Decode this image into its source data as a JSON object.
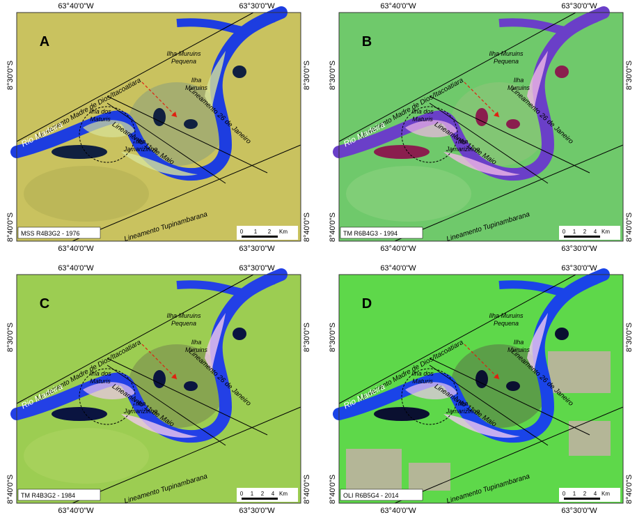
{
  "panels": [
    {
      "letter": "A",
      "caption": "MSS R4B3G2 - 1976",
      "lon_top": [
        "63°40'0\"W",
        "63°30'0\"W"
      ],
      "lon_bottom": [
        "63°40'0\"W",
        "63°30'0\"W"
      ],
      "lat_left": [
        "8°30'0\"S",
        "8°40'0\"S"
      ],
      "lat_right": [
        "8°30'0\"S",
        "8°40'0\"S"
      ],
      "labels": [
        "Lineamento Madre de Dios/Itacoatiara",
        "Lineamento 26 de Janeiro",
        "Lineamento 11 de Maio",
        "Lineamento Tupinambarana",
        "Rio Madeira",
        [
          "Ilha dos",
          "Maturis"
        ],
        [
          "Ilha",
          "Jamarizinho"
        ],
        [
          "Ilha Muruins",
          "Pequena"
        ],
        [
          "Ilha",
          "Muruins"
        ]
      ],
      "scale": [
        "0",
        "1",
        "2",
        "Km"
      ]
    },
    {
      "letter": "B",
      "caption": "TM R6B4G3 - 1994",
      "lon_top": [
        "63°40'0\"W",
        "63°30'0\"W"
      ],
      "lon_bottom": [
        "63°40'0\"W",
        "63°30'0\"W"
      ],
      "lat_left": [
        "8°30'0\"S",
        "8°40'0\"S"
      ],
      "lat_right": [
        "8°30'0\"S",
        "8°40'0\"S"
      ],
      "labels": [
        "Lineamento Madre de Dios/Itacoatiara",
        "Lineamento 26 de Janeiro",
        "Lineamento 11 de Maio",
        "Lineamento Tupinambarana",
        "Rio Madeira",
        [
          "Ilha dos",
          "Maturis"
        ],
        [
          "Ilha",
          "Jamarizinho"
        ],
        [
          "Ilha Muruins",
          "Pequena"
        ],
        [
          "Ilha",
          "Muruins"
        ]
      ],
      "scale": [
        "0",
        "1",
        "2",
        "4",
        "Km"
      ]
    },
    {
      "letter": "C",
      "caption": "TM R4B3G2 - 1984",
      "lon_top": [
        "63°40'0\"W",
        "63°30'0\"W"
      ],
      "lon_bottom": [
        "63°40'0\"W",
        "63°30'0\"W"
      ],
      "lat_left": [
        "8°30'0\"S",
        "8°40'0\"S"
      ],
      "lat_right": [
        "8°30'0\"S",
        "8°40'0\"S"
      ],
      "labels": [
        "Lineamento Madre de Dios/Itacoatiara",
        "Lineamento 26 de Janeiro",
        "Lineamento 11 de Maio",
        "Lineamento Tupinambarana",
        "Rio Madeira",
        [
          "Ilha dos",
          "Maturis"
        ],
        [
          "Ilha",
          "Jamarizinho"
        ],
        [
          "Ilha Muruins",
          "Pequena"
        ],
        [
          "Ilha",
          "Muruins"
        ]
      ],
      "scale": [
        "0",
        "1",
        "2",
        "4",
        "Km"
      ]
    },
    {
      "letter": "D",
      "caption": "OLI R6B5G4 - 2014",
      "lon_top": [
        "63°40'0\"W",
        "63°30'0\"W"
      ],
      "lon_bottom": [
        "63°40'0\"W",
        "63°30'0\"W"
      ],
      "lat_left": [
        "8°30'0\"S",
        "8°40'0\"S"
      ],
      "lat_right": [
        "8°30'0\"S",
        "8°40'0\"S"
      ],
      "labels": [
        "Lineamento Madre de Dios/Itacoatiara",
        "Lineamento 26 de Janeiro",
        "Lineamento 11 de Maio",
        "Lineamento Tupinambarana",
        "Rio Madeira",
        [
          "Ilha dos",
          "Maturis"
        ],
        [
          "Ilha",
          "Jamarizinho"
        ],
        [
          "Ilha Muruins",
          "Pequena"
        ],
        [
          "Ilha",
          "Muruins"
        ]
      ],
      "scale": [
        "0",
        "1",
        "2",
        "4",
        "Km"
      ]
    }
  ]
}
